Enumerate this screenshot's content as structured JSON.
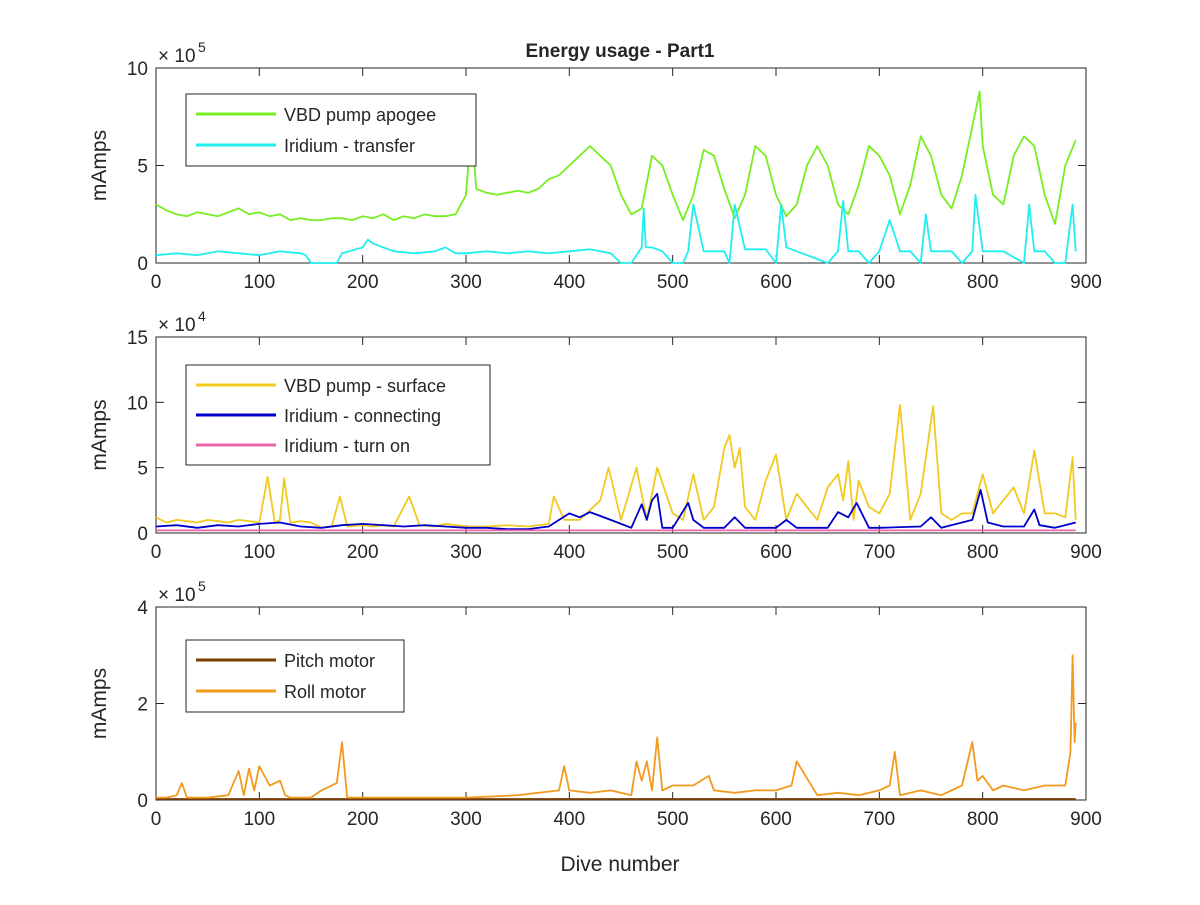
{
  "figure": {
    "title": "Energy usage - Part1",
    "xlabel": "Dive number"
  },
  "chart_data": [
    {
      "type": "line",
      "title": "Energy usage - Part1",
      "xlabel": "",
      "ylabel": "mAmps",
      "exponent_label": "× 10",
      "exponent_power": "5",
      "xlim": [
        0,
        900
      ],
      "ylim": [
        0,
        10
      ],
      "xticks": [
        "0",
        "100",
        "200",
        "300",
        "400",
        "500",
        "600",
        "700",
        "800",
        "900"
      ],
      "yticks": [
        "0",
        "5",
        "10"
      ],
      "ytick_values": [
        0,
        5,
        10
      ],
      "legend_placement": "top-left",
      "series": [
        {
          "name": "VBD pump apogee",
          "color": "#77EE22",
          "x": [
            0,
            10,
            20,
            30,
            40,
            50,
            60,
            70,
            80,
            90,
            100,
            110,
            120,
            130,
            140,
            150,
            160,
            170,
            180,
            190,
            200,
            210,
            220,
            230,
            240,
            250,
            260,
            270,
            280,
            290,
            300,
            305,
            310,
            320,
            330,
            340,
            350,
            360,
            370,
            380,
            390,
            400,
            410,
            420,
            430,
            440,
            450,
            460,
            470,
            480,
            490,
            500,
            510,
            520,
            530,
            540,
            550,
            560,
            570,
            580,
            590,
            600,
            610,
            620,
            630,
            640,
            650,
            660,
            670,
            680,
            690,
            700,
            710,
            720,
            730,
            740,
            750,
            760,
            770,
            780,
            790,
            797,
            800,
            810,
            820,
            830,
            840,
            850,
            860,
            870,
            880,
            890
          ],
          "values": [
            3.0,
            2.7,
            2.5,
            2.4,
            2.6,
            2.5,
            2.4,
            2.6,
            2.8,
            2.5,
            2.6,
            2.4,
            2.5,
            2.2,
            2.3,
            2.2,
            2.2,
            2.3,
            2.3,
            2.2,
            2.4,
            2.3,
            2.5,
            2.2,
            2.4,
            2.3,
            2.5,
            2.4,
            2.4,
            2.5,
            3.5,
            7.0,
            3.8,
            3.6,
            3.5,
            3.6,
            3.7,
            3.6,
            3.8,
            4.3,
            4.5,
            5.0,
            5.5,
            6.0,
            5.5,
            5.0,
            3.5,
            2.5,
            2.8,
            5.5,
            5.0,
            3.5,
            2.2,
            3.5,
            5.8,
            5.5,
            3.8,
            2.3,
            3.5,
            6.0,
            5.5,
            3.5,
            2.4,
            3.0,
            5.0,
            6.0,
            5.0,
            3.0,
            2.5,
            4.0,
            6.0,
            5.5,
            4.5,
            2.5,
            4.0,
            6.5,
            5.5,
            3.5,
            2.8,
            4.5,
            7.0,
            8.8,
            6.0,
            3.5,
            3.0,
            5.5,
            6.5,
            6.0,
            3.5,
            2.0,
            5.0,
            6.3
          ]
        },
        {
          "name": "Iridium - transfer",
          "color": "#22EEEE",
          "x": [
            0,
            20,
            40,
            60,
            80,
            100,
            120,
            140,
            145,
            150,
            175,
            180,
            200,
            205,
            210,
            220,
            230,
            250,
            270,
            280,
            290,
            300,
            320,
            340,
            360,
            380,
            400,
            420,
            440,
            450,
            460,
            470,
            472,
            474,
            480,
            490,
            500,
            510,
            515,
            520,
            530,
            550,
            555,
            560,
            570,
            590,
            600,
            605,
            610,
            620,
            650,
            660,
            665,
            670,
            680,
            690,
            700,
            710,
            720,
            730,
            740,
            745,
            750,
            770,
            780,
            790,
            793,
            800,
            820,
            840,
            845,
            850,
            860,
            870,
            880,
            887,
            890
          ],
          "values": [
            0.4,
            0.5,
            0.4,
            0.6,
            0.5,
            0.4,
            0.6,
            0.5,
            0.4,
            0.0,
            0.0,
            0.5,
            0.8,
            1.2,
            1.0,
            0.8,
            0.6,
            0.5,
            0.6,
            0.8,
            0.5,
            0.5,
            0.6,
            0.5,
            0.6,
            0.5,
            0.6,
            0.7,
            0.5,
            0.0,
            0.0,
            0.8,
            2.8,
            0.8,
            0.8,
            0.6,
            0.0,
            0.0,
            0.6,
            3.0,
            0.6,
            0.6,
            0.0,
            3.0,
            0.7,
            0.7,
            0.0,
            3.0,
            0.8,
            0.6,
            0.0,
            0.6,
            3.2,
            0.6,
            0.6,
            0.0,
            0.6,
            2.2,
            0.6,
            0.6,
            0.0,
            2.5,
            0.6,
            0.6,
            0.0,
            0.6,
            3.5,
            0.6,
            0.6,
            0.0,
            3.0,
            0.6,
            0.6,
            0.0,
            0.0,
            3.0,
            0.6
          ]
        }
      ]
    },
    {
      "type": "line",
      "title": "",
      "xlabel": "",
      "ylabel": "mAmps",
      "exponent_label": "× 10",
      "exponent_power": "4",
      "xlim": [
        0,
        900
      ],
      "ylim": [
        0,
        15
      ],
      "xticks": [
        "0",
        "100",
        "200",
        "300",
        "400",
        "500",
        "600",
        "700",
        "800",
        "900"
      ],
      "yticks": [
        "0",
        "5",
        "10",
        "15"
      ],
      "ytick_values": [
        0,
        5,
        10,
        15
      ],
      "legend_placement": "top-left",
      "series": [
        {
          "name": "VBD pump - surface",
          "color": "#F2C91F",
          "x": [
            0,
            10,
            20,
            30,
            40,
            50,
            60,
            70,
            80,
            90,
            100,
            108,
            115,
            120,
            124,
            130,
            140,
            150,
            160,
            170,
            178,
            185,
            200,
            210,
            220,
            230,
            245,
            255,
            270,
            280,
            290,
            300,
            320,
            340,
            360,
            380,
            385,
            395,
            410,
            430,
            438,
            450,
            465,
            475,
            485,
            500,
            510,
            520,
            530,
            540,
            550,
            555,
            560,
            565,
            570,
            580,
            590,
            600,
            610,
            620,
            630,
            640,
            650,
            660,
            665,
            670,
            675,
            680,
            690,
            700,
            710,
            720,
            730,
            740,
            752,
            760,
            770,
            780,
            790,
            800,
            810,
            820,
            830,
            840,
            850,
            860,
            870,
            880,
            887,
            890
          ],
          "values": [
            1.2,
            0.8,
            1.0,
            0.9,
            0.8,
            1.0,
            0.9,
            0.8,
            1.0,
            0.9,
            0.8,
            4.3,
            0.8,
            1.0,
            4.2,
            0.8,
            0.9,
            0.8,
            0.4,
            0.5,
            2.8,
            0.5,
            0.6,
            0.5,
            0.6,
            0.5,
            2.8,
            0.6,
            0.5,
            0.7,
            0.6,
            0.5,
            0.5,
            0.6,
            0.5,
            0.7,
            2.8,
            1.0,
            1.0,
            2.5,
            5.0,
            1.0,
            5.0,
            1.0,
            5.0,
            1.5,
            1.0,
            4.5,
            1.0,
            2.0,
            6.5,
            7.5,
            5.0,
            6.5,
            2.0,
            1.0,
            4.0,
            6.0,
            1.0,
            3.0,
            2.0,
            1.0,
            3.5,
            4.5,
            2.5,
            5.5,
            1.0,
            4.0,
            2.0,
            1.5,
            3.0,
            9.8,
            1.0,
            3.0,
            9.7,
            1.5,
            1.0,
            1.5,
            1.5,
            4.5,
            1.5,
            2.5,
            3.5,
            1.5,
            6.3,
            1.5,
            1.5,
            1.2,
            5.8,
            1.0
          ]
        },
        {
          "name": "Iridium - connecting",
          "color": "#0000CC",
          "x": [
            0,
            20,
            40,
            60,
            80,
            100,
            120,
            140,
            160,
            180,
            200,
            220,
            240,
            260,
            280,
            300,
            320,
            340,
            360,
            380,
            400,
            410,
            420,
            440,
            460,
            470,
            475,
            480,
            485,
            490,
            500,
            515,
            520,
            530,
            550,
            560,
            570,
            600,
            610,
            620,
            650,
            660,
            670,
            678,
            690,
            700,
            740,
            750,
            760,
            790,
            798,
            805,
            820,
            840,
            850,
            855,
            870,
            890
          ],
          "values": [
            0.5,
            0.6,
            0.4,
            0.6,
            0.5,
            0.7,
            0.8,
            0.5,
            0.4,
            0.6,
            0.7,
            0.6,
            0.5,
            0.6,
            0.5,
            0.4,
            0.4,
            0.3,
            0.3,
            0.5,
            1.5,
            1.2,
            1.6,
            1.0,
            0.4,
            2.2,
            1.0,
            2.5,
            3.0,
            0.4,
            0.4,
            2.3,
            1.0,
            0.4,
            0.4,
            1.2,
            0.4,
            0.4,
            1.0,
            0.4,
            0.4,
            1.6,
            1.2,
            2.3,
            0.4,
            0.4,
            0.5,
            1.2,
            0.4,
            1.0,
            3.3,
            0.8,
            0.5,
            0.5,
            1.8,
            0.6,
            0.4,
            0.8
          ]
        },
        {
          "name": "Iridium - turn on",
          "color": "#EE66AA",
          "x": [
            0,
            100,
            200,
            300,
            400,
            500,
            600,
            700,
            800,
            890
          ],
          "values": [
            0.2,
            0.2,
            0.2,
            0.2,
            0.2,
            0.2,
            0.2,
            0.2,
            0.2,
            0.2
          ]
        }
      ]
    },
    {
      "type": "line",
      "title": "",
      "xlabel": "Dive number",
      "ylabel": "mAmps",
      "exponent_label": "× 10",
      "exponent_power": "5",
      "xlim": [
        0,
        900
      ],
      "ylim": [
        0,
        4
      ],
      "xticks": [
        "0",
        "100",
        "200",
        "300",
        "400",
        "500",
        "600",
        "700",
        "800",
        "900"
      ],
      "yticks": [
        "0",
        "2",
        "4"
      ],
      "ytick_values": [
        0,
        2,
        4
      ],
      "legend_placement": "top-left",
      "series": [
        {
          "name": "Pitch motor",
          "color": "#7B3F00",
          "x": [
            0,
            100,
            200,
            300,
            400,
            500,
            600,
            700,
            800,
            890
          ],
          "values": [
            0.02,
            0.02,
            0.02,
            0.02,
            0.02,
            0.02,
            0.02,
            0.02,
            0.02,
            0.02
          ]
        },
        {
          "name": "Roll motor",
          "color": "#F39A1E",
          "x": [
            0,
            10,
            20,
            25,
            30,
            50,
            70,
            80,
            85,
            90,
            95,
            100,
            110,
            120,
            125,
            130,
            150,
            160,
            175,
            180,
            185,
            200,
            250,
            300,
            350,
            390,
            395,
            400,
            420,
            440,
            460,
            465,
            470,
            475,
            480,
            485,
            490,
            500,
            520,
            535,
            540,
            560,
            580,
            600,
            615,
            620,
            640,
            660,
            680,
            700,
            710,
            715,
            720,
            740,
            760,
            780,
            790,
            795,
            800,
            810,
            820,
            840,
            860,
            880,
            885,
            887,
            889,
            890
          ],
          "values": [
            0.05,
            0.05,
            0.1,
            0.35,
            0.05,
            0.05,
            0.1,
            0.6,
            0.1,
            0.65,
            0.2,
            0.7,
            0.3,
            0.4,
            0.1,
            0.05,
            0.05,
            0.2,
            0.35,
            1.2,
            0.05,
            0.05,
            0.05,
            0.05,
            0.1,
            0.2,
            0.7,
            0.2,
            0.15,
            0.2,
            0.1,
            0.8,
            0.4,
            0.8,
            0.2,
            1.3,
            0.2,
            0.3,
            0.3,
            0.5,
            0.2,
            0.15,
            0.2,
            0.2,
            0.3,
            0.8,
            0.1,
            0.15,
            0.1,
            0.2,
            0.3,
            1.0,
            0.1,
            0.2,
            0.1,
            0.3,
            1.2,
            0.4,
            0.5,
            0.2,
            0.3,
            0.2,
            0.3,
            0.3,
            1.0,
            3.0,
            1.2,
            1.6
          ]
        }
      ]
    }
  ]
}
